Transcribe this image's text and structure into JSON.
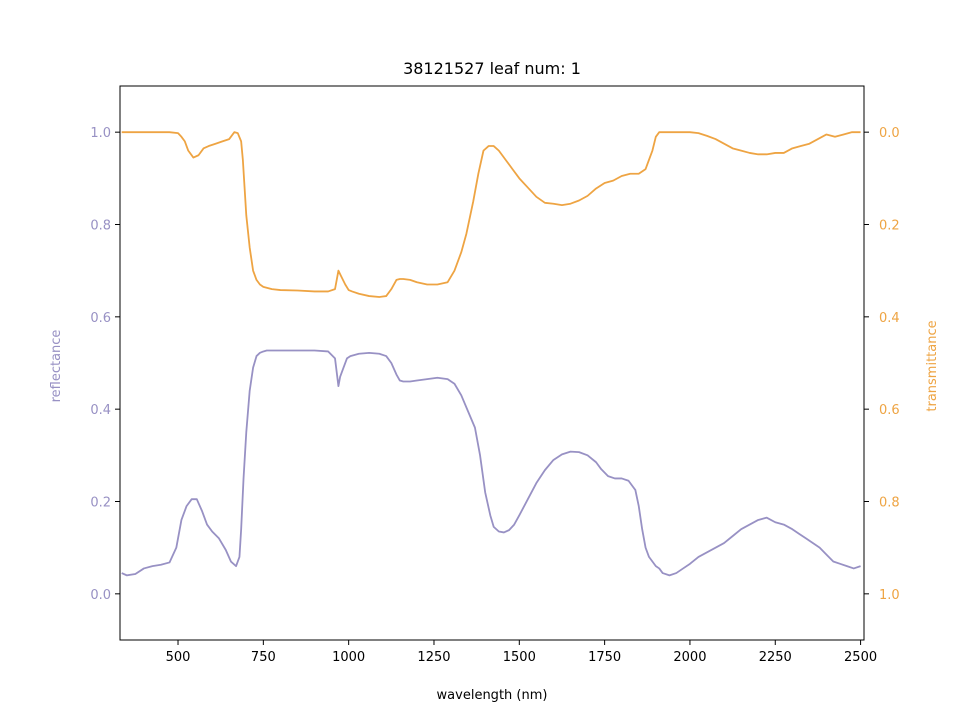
{
  "chart_data": {
    "type": "line",
    "title": "38121527 leaf num: 1",
    "xlabel": "wavelength (nm)",
    "ylabel_left": "reflectance",
    "ylabel_right": "transmittance",
    "xlim": [
      330,
      2510
    ],
    "ylim_left": [
      -0.1,
      1.1
    ],
    "ylim_right": [
      1.1,
      -0.1
    ],
    "right_axis_inverted": true,
    "grid": false,
    "x_ticks": [
      500,
      750,
      1000,
      1250,
      1500,
      1750,
      2000,
      2250,
      2500
    ],
    "x_tick_labels": [
      "500",
      "750",
      "1000",
      "1250",
      "1500",
      "1750",
      "2000",
      "2250",
      "2500"
    ],
    "y_left_ticks": [
      0.0,
      0.2,
      0.4,
      0.6,
      0.8,
      1.0
    ],
    "y_left_tick_labels": [
      "0.0",
      "0.2",
      "0.4",
      "0.6",
      "0.8",
      "1.0"
    ],
    "y_right_ticks": [
      0.0,
      0.2,
      0.4,
      0.6,
      0.8,
      1.0
    ],
    "y_right_tick_labels": [
      "0.0",
      "0.2",
      "0.4",
      "0.6",
      "0.8",
      "1.0"
    ],
    "colors": {
      "reflectance": "#9891c4",
      "transmittance": "#eea443"
    },
    "series": [
      {
        "axis": "left",
        "x": [
          335,
          350,
          375,
          400,
          425,
          450,
          475,
          495,
          510,
          525,
          540,
          555,
          570,
          585,
          600,
          620,
          640,
          655,
          670,
          680,
          685,
          692,
          700,
          710,
          720,
          730,
          740,
          750,
          760,
          775,
          800,
          850,
          900,
          940,
          960,
          970,
          975,
          985,
          995,
          1005,
          1030,
          1060,
          1090,
          1110,
          1125,
          1140,
          1150,
          1160,
          1180,
          1200,
          1230,
          1260,
          1290,
          1310,
          1330,
          1350,
          1370,
          1385,
          1400,
          1415,
          1425,
          1440,
          1455,
          1470,
          1485,
          1500,
          1525,
          1550,
          1575,
          1600,
          1625,
          1650,
          1675,
          1700,
          1725,
          1740,
          1760,
          1780,
          1800,
          1820,
          1840,
          1850,
          1860,
          1870,
          1880,
          1890,
          1900,
          1910,
          1920,
          1940,
          1960,
          1980,
          2000,
          2025,
          2050,
          2075,
          2100,
          2125,
          2150,
          2175,
          2200,
          2225,
          2250,
          2275,
          2300,
          2320,
          2340,
          2360,
          2380,
          2400,
          2420,
          2440,
          2460,
          2480,
          2500
        ],
        "y": [
          0.045,
          0.04,
          0.043,
          0.055,
          0.06,
          0.063,
          0.068,
          0.1,
          0.16,
          0.19,
          0.205,
          0.205,
          0.18,
          0.15,
          0.135,
          0.12,
          0.095,
          0.07,
          0.06,
          0.08,
          0.14,
          0.25,
          0.35,
          0.44,
          0.49,
          0.515,
          0.522,
          0.525,
          0.527,
          0.527,
          0.527,
          0.527,
          0.527,
          0.525,
          0.51,
          0.45,
          0.47,
          0.49,
          0.51,
          0.515,
          0.52,
          0.522,
          0.52,
          0.515,
          0.5,
          0.475,
          0.462,
          0.46,
          0.46,
          0.462,
          0.465,
          0.468,
          0.465,
          0.455,
          0.43,
          0.395,
          0.36,
          0.3,
          0.22,
          0.17,
          0.145,
          0.135,
          0.133,
          0.138,
          0.15,
          0.17,
          0.205,
          0.24,
          0.268,
          0.29,
          0.302,
          0.308,
          0.307,
          0.3,
          0.285,
          0.27,
          0.255,
          0.25,
          0.25,
          0.245,
          0.225,
          0.19,
          0.14,
          0.1,
          0.08,
          0.07,
          0.06,
          0.055,
          0.045,
          0.04,
          0.045,
          0.055,
          0.065,
          0.08,
          0.09,
          0.1,
          0.11,
          0.125,
          0.14,
          0.15,
          0.16,
          0.165,
          0.155,
          0.15,
          0.14,
          0.13,
          0.12,
          0.11,
          0.1,
          0.085,
          0.07,
          0.065,
          0.06,
          0.055,
          0.06
        ]
      },
      {
        "axis": "right",
        "x": [
          335,
          350,
          375,
          400,
          425,
          450,
          475,
          500,
          510,
          520,
          530,
          545,
          560,
          575,
          590,
          610,
          630,
          650,
          665,
          675,
          685,
          690,
          695,
          700,
          710,
          720,
          730,
          740,
          750,
          775,
          800,
          850,
          900,
          940,
          960,
          970,
          980,
          990,
          1000,
          1010,
          1030,
          1060,
          1090,
          1110,
          1125,
          1140,
          1150,
          1160,
          1180,
          1200,
          1230,
          1260,
          1290,
          1310,
          1330,
          1345,
          1365,
          1380,
          1395,
          1410,
          1425,
          1440,
          1460,
          1480,
          1500,
          1525,
          1550,
          1575,
          1600,
          1625,
          1650,
          1675,
          1700,
          1725,
          1750,
          1775,
          1800,
          1825,
          1850,
          1870,
          1880,
          1890,
          1900,
          1910,
          1930,
          1960,
          2000,
          2025,
          2050,
          2075,
          2100,
          2125,
          2150,
          2175,
          2200,
          2225,
          2250,
          2275,
          2300,
          2325,
          2350,
          2375,
          2400,
          2425,
          2450,
          2475,
          2500
        ],
        "y": [
          0.0,
          0.0,
          0.0,
          0.0,
          0.0,
          0.0,
          0.0,
          0.002,
          0.01,
          0.02,
          0.04,
          0.055,
          0.05,
          0.035,
          0.03,
          0.025,
          0.02,
          0.015,
          0.0,
          0.002,
          0.02,
          0.06,
          0.12,
          0.18,
          0.25,
          0.3,
          0.32,
          0.33,
          0.335,
          0.34,
          0.342,
          0.343,
          0.345,
          0.345,
          0.34,
          0.3,
          0.315,
          0.33,
          0.342,
          0.345,
          0.35,
          0.355,
          0.357,
          0.355,
          0.34,
          0.32,
          0.318,
          0.318,
          0.32,
          0.325,
          0.33,
          0.33,
          0.325,
          0.3,
          0.26,
          0.22,
          0.15,
          0.09,
          0.04,
          0.03,
          0.03,
          0.04,
          0.06,
          0.08,
          0.1,
          0.12,
          0.14,
          0.153,
          0.155,
          0.158,
          0.155,
          0.148,
          0.138,
          0.122,
          0.11,
          0.105,
          0.095,
          0.09,
          0.09,
          0.08,
          0.06,
          0.04,
          0.01,
          0.0,
          0.0,
          0.0,
          0.0,
          0.002,
          0.008,
          0.015,
          0.025,
          0.035,
          0.04,
          0.045,
          0.048,
          0.048,
          0.045,
          0.045,
          0.035,
          0.03,
          0.025,
          0.015,
          0.005,
          0.01,
          0.005,
          0.0,
          0.0
        ]
      }
    ]
  }
}
